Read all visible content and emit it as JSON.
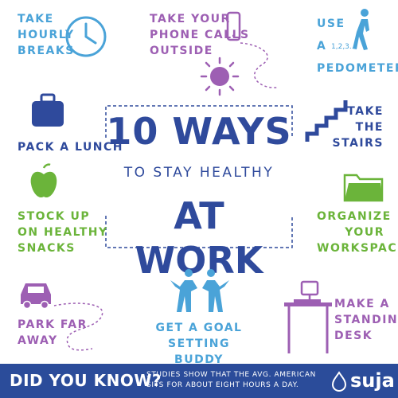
{
  "title": {
    "line1": "10 WAYS",
    "line2": "TO STAY HEALTHY",
    "line3": "AT WORK"
  },
  "tips": {
    "hourly_breaks": "TAKE\nHOURLY\nBREAKS",
    "phone_calls": "TAKE YOUR\nPHONE CALLS\nOUTSIDE",
    "pedometer_use": "USE",
    "pedometer_a": "A",
    "pedometer_steps": "1,2,3...",
    "pedometer": "PEDOMETER",
    "lunch": "PACK A LUNCH",
    "stairs": "TAKE\nTHE\nSTAIRS",
    "snacks": "STOCK UP\nON HEALTHY\nSNACKS",
    "workspace": "ORGANIZE\nYOUR\nWORKSPACE",
    "park": "PARK FAR\nAWAY",
    "buddy": "GET A GOAL\nSETTING BUDDY",
    "desk": "MAKE A\nSTANDING\nDESK"
  },
  "footer": {
    "question": "DID YOU KNOW?",
    "fact": "STUDIES SHOW THAT THE AVG. AMERICAN\nSITS FOR ABOUT EIGHT HOURS A DAY.",
    "brand": "suja"
  },
  "colors": {
    "blue": "#4aa3d8",
    "purple": "#9d5fb3",
    "navy": "#2f4a9c",
    "green": "#6bb43a",
    "footer_bg": "#2b4c9a"
  },
  "icons": [
    "clock-icon",
    "phone-icon",
    "sun-icon",
    "walking-person-icon",
    "briefcase-icon",
    "stairs-icon",
    "apple-icon",
    "folder-icon",
    "car-icon",
    "buddies-icon",
    "standing-desk-icon",
    "suja-drop-icon"
  ]
}
